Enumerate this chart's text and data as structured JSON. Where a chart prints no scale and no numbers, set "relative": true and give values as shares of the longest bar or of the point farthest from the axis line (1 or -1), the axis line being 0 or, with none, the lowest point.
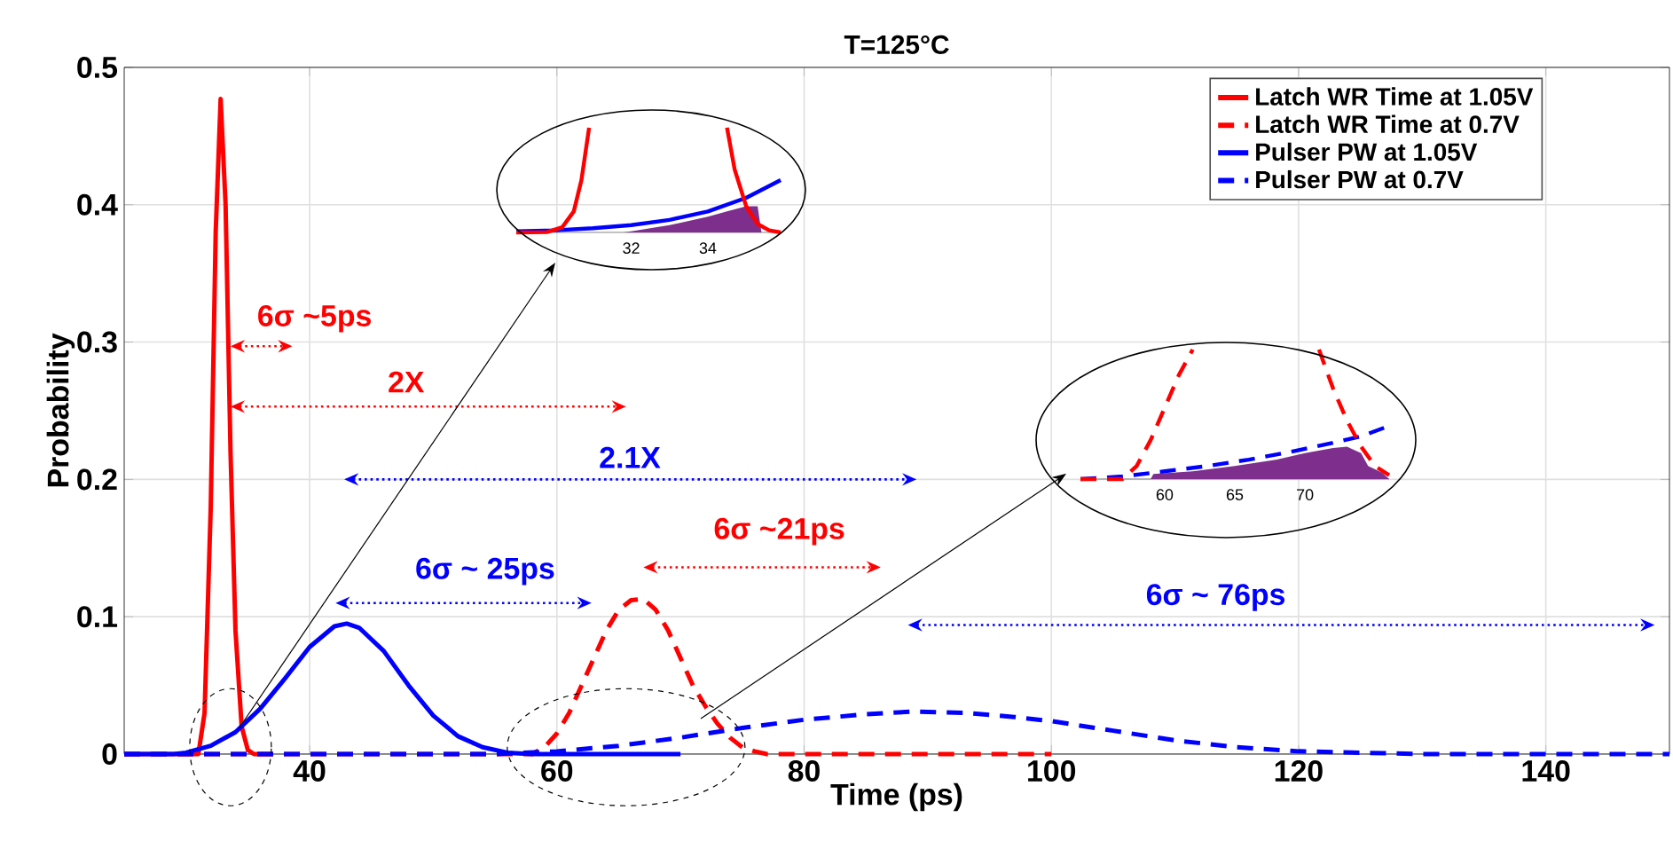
{
  "chart_data": [
    {
      "type": "line",
      "title": "T=125°C",
      "xlabel": "Time (ps)",
      "ylabel": "Probability",
      "xlim": [
        25,
        150
      ],
      "ylim": [
        0,
        0.5
      ],
      "xticks": [
        40,
        60,
        80,
        100,
        120,
        140
      ],
      "yticks": [
        0,
        0.1,
        0.2,
        0.3,
        0.4,
        0.5
      ],
      "grid": true,
      "legend": "top right",
      "series": [
        {
          "name": "Latch WR Time at 1.05V",
          "color": "#ff0000",
          "line_style": "solid",
          "x": [
            25,
            31,
            31.5,
            32,
            32.4,
            32.8,
            33.2,
            33.6,
            34,
            34.5,
            35,
            35.5,
            37
          ],
          "values": [
            0,
            0,
            0.03,
            0.18,
            0.38,
            0.477,
            0.4,
            0.22,
            0.09,
            0.02,
            0.003,
            0,
            0
          ]
        },
        {
          "name": "Latch WR Time at 0.7V",
          "color": "#ff0000",
          "line_style": "dashed",
          "x": [
            25,
            58,
            59,
            60,
            61,
            62,
            63,
            64,
            65,
            66,
            67,
            68,
            69,
            70,
            71,
            72,
            73,
            74,
            75,
            76,
            77,
            100
          ],
          "values": [
            0,
            0,
            0.005,
            0.015,
            0.03,
            0.05,
            0.07,
            0.09,
            0.105,
            0.112,
            0.113,
            0.105,
            0.09,
            0.07,
            0.05,
            0.035,
            0.022,
            0.012,
            0.005,
            0.002,
            0,
            0
          ]
        },
        {
          "name": "Pulser PW at 1.05V",
          "color": "#0000ff",
          "line_style": "solid",
          "x": [
            25,
            29,
            30,
            32,
            34,
            36,
            38,
            40,
            42,
            43,
            44,
            46,
            48,
            50,
            52,
            54,
            56,
            58,
            70
          ],
          "values": [
            0,
            0,
            0.001,
            0.006,
            0.016,
            0.033,
            0.055,
            0.078,
            0.093,
            0.095,
            0.092,
            0.075,
            0.05,
            0.028,
            0.013,
            0.005,
            0.001,
            0,
            0
          ]
        },
        {
          "name": "Pulser PW at 0.7V",
          "color": "#0000ff",
          "line_style": "dashed",
          "x": [
            25,
            55,
            60,
            65,
            70,
            75,
            80,
            85,
            89,
            93,
            97,
            100,
            105,
            110,
            115,
            120,
            125,
            130,
            150
          ],
          "values": [
            0,
            0,
            0.002,
            0.006,
            0.012,
            0.019,
            0.025,
            0.029,
            0.031,
            0.03,
            0.027,
            0.024,
            0.017,
            0.01,
            0.005,
            0.002,
            0.001,
            0,
            0
          ]
        }
      ],
      "annotations": [
        "6σ ~5ps",
        "2X",
        "2.1X",
        "6σ ~21ps",
        "6σ ~ 25ps",
        "6σ ~ 76ps"
      ]
    },
    {
      "type": "line",
      "relative": true,
      "xlim": [
        29,
        35.9
      ],
      "xticks": [
        32,
        34
      ],
      "tick_labels": "x",
      "series": [
        {
          "type": "area",
          "color": "#7e2f8e",
          "x": [
            31.8,
            32,
            33,
            34,
            34.5,
            35,
            35.3,
            35.4
          ],
          "values": [
            0,
            0.01,
            0.07,
            0.15,
            0.2,
            0.25,
            0.25,
            0
          ]
        },
        {
          "color": "#0000ff",
          "line_style": "solid",
          "x": [
            29,
            30,
            31,
            32,
            33,
            34,
            35,
            35.9
          ],
          "values": [
            0.01,
            0.02,
            0.04,
            0.07,
            0.12,
            0.2,
            0.33,
            0.5
          ]
        },
        {
          "color": "#ff0000",
          "line_style": "solid",
          "x": [
            29,
            29.8,
            30.2,
            30.5,
            30.7,
            30.9
          ],
          "values": [
            0,
            0.003,
            0.05,
            0.2,
            0.5,
            1
          ]
        },
        {
          "color": "#ff0000",
          "line_style": "solid",
          "x": [
            34.5,
            34.7,
            35,
            35.3,
            35.6,
            35.9
          ],
          "values": [
            1,
            0.6,
            0.25,
            0.08,
            0.02,
            0
          ]
        }
      ]
    },
    {
      "type": "line",
      "relative": true,
      "xlim": [
        54,
        76
      ],
      "xticks": [
        60,
        65,
        70
      ],
      "tick_labels": "x",
      "series": [
        {
          "type": "area",
          "color": "#7e2f8e",
          "x": [
            59,
            59.2,
            62,
            65,
            68,
            70,
            72,
            73,
            74,
            74.5,
            75.5,
            76
          ],
          "values": [
            0,
            0.04,
            0.06,
            0.1,
            0.15,
            0.2,
            0.24,
            0.25,
            0.2,
            0.1,
            0.05,
            0
          ]
        },
        {
          "color": "#0000ff",
          "line_style": "dashed",
          "x": [
            54,
            57,
            60,
            63,
            66,
            69,
            72,
            74,
            76
          ],
          "values": [
            0,
            0.02,
            0.06,
            0.1,
            0.15,
            0.21,
            0.28,
            0.33,
            0.41
          ]
        },
        {
          "color": "#ff0000",
          "line_style": "dashed",
          "x": [
            54,
            57,
            58,
            59,
            60,
            61,
            62
          ],
          "values": [
            0,
            0,
            0.1,
            0.3,
            0.55,
            0.8,
            1
          ]
        },
        {
          "color": "#ff0000",
          "line_style": "dashed",
          "x": [
            71,
            72,
            73,
            74,
            75,
            76
          ],
          "values": [
            1,
            0.7,
            0.45,
            0.25,
            0.1,
            0.03
          ]
        }
      ]
    }
  ]
}
